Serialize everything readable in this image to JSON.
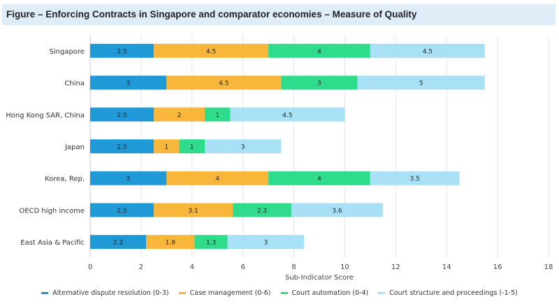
{
  "chart_data": {
    "type": "bar",
    "orientation": "horizontal",
    "stacked": true,
    "title": "Figure – Enforcing Contracts in Singapore and comparator economies – Measure of Quality",
    "xlabel": "Sub-Indicator Score",
    "ylabel": "",
    "xlim": [
      0,
      18
    ],
    "xticks": [
      0,
      2,
      4,
      6,
      8,
      10,
      12,
      14,
      16,
      18
    ],
    "grid": true,
    "legend_position": "bottom",
    "categories": [
      "Singapore",
      "China",
      "Hong Kong SAR, China",
      "Japan",
      "Korea, Rep.",
      "OECD high income",
      "East Asia & Pacific"
    ],
    "series": [
      {
        "name": "Alternative dispute resolution (0-3)",
        "color": "#1f9ad6",
        "values": [
          2.5,
          3,
          2.5,
          2.5,
          3,
          2.5,
          2.2
        ]
      },
      {
        "name": "Case management (0-6)",
        "color": "#f8b63a",
        "values": [
          4.5,
          4.5,
          2,
          1,
          4,
          3.1,
          1.9
        ]
      },
      {
        "name": "Court automation (0-4)",
        "color": "#2fdc8c",
        "values": [
          4,
          3,
          1,
          1,
          4,
          2.3,
          1.3
        ]
      },
      {
        "name": "Court structure and proceedings (-1-5)",
        "color": "#a8e0f5",
        "values": [
          4.5,
          5,
          4.5,
          3,
          3.5,
          3.6,
          3
        ]
      }
    ]
  }
}
